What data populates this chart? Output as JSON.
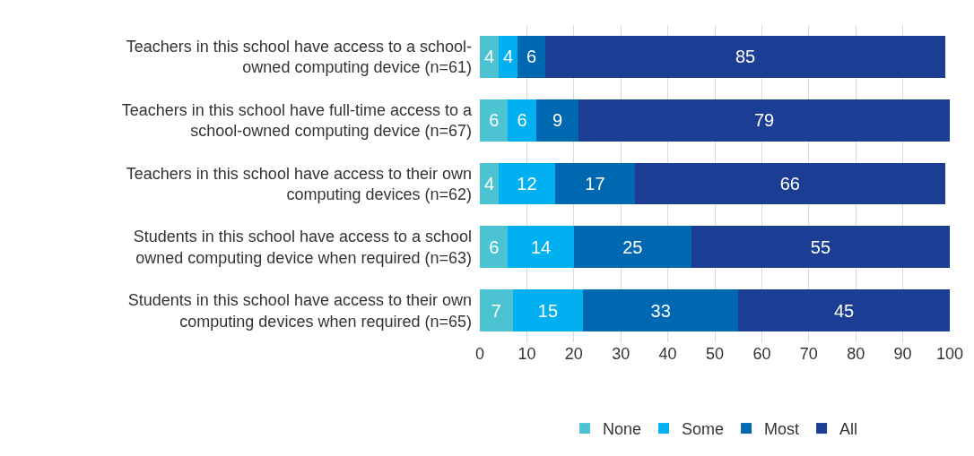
{
  "chart_data": {
    "type": "bar",
    "orientation": "horizontal",
    "stacked": true,
    "categories": [
      "Teachers in this school have access to a school-\nowned computing device (n=61)",
      "Teachers in this school have full-time access to a\nschool-owned computing device (n=67)",
      "Teachers in this school have access to their own\ncomputing devices (n=62)",
      "Students in this school have access to a school\nowned computing device when required (n=63)",
      "Students in this school have access to their own\ncomputing devices when required (n=65)"
    ],
    "series": [
      {
        "name": "None",
        "color": "#4cc3d2",
        "values": [
          4,
          6,
          4,
          6,
          7
        ]
      },
      {
        "name": "Some",
        "color": "#00b0f0",
        "values": [
          4,
          6,
          12,
          14,
          15
        ]
      },
      {
        "name": "Most",
        "color": "#0068b0",
        "values": [
          6,
          9,
          17,
          25,
          33
        ]
      },
      {
        "name": "All",
        "color": "#1c3d94",
        "values": [
          85,
          79,
          66,
          55,
          45
        ]
      }
    ],
    "xlim": [
      0,
      100
    ],
    "xticks": [
      0,
      10,
      20,
      30,
      40,
      50,
      60,
      70,
      80,
      90,
      100
    ],
    "data_labels": true,
    "grid": "x",
    "legend": "bottom"
  }
}
